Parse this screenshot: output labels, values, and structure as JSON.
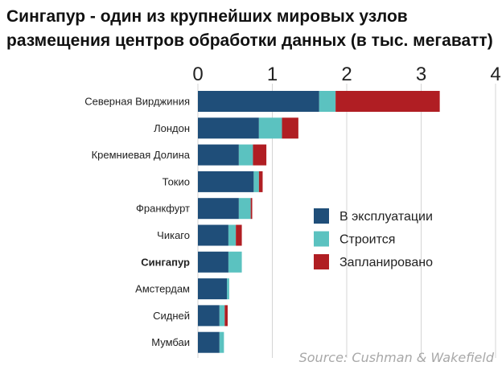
{
  "title_lines": [
    "Сингапур - один из крупнейших мировых узлов",
    "размещения центров обработки данных (в тыс. мегаватт)"
  ],
  "source": "Source: Cushman & Wakefield",
  "colors": {
    "operating": "#1f4e79",
    "construction": "#5bc2c0",
    "planned": "#b01e23",
    "grid": "#d4d4d4",
    "text": "#222222"
  },
  "chart_data": {
    "type": "bar",
    "orientation": "horizontal",
    "stacked": true,
    "xlim": [
      0,
      4
    ],
    "x_ticks": [
      "0",
      "1",
      "2",
      "3",
      "4"
    ],
    "highlight_category": "Сингапур",
    "categories": [
      "Северная Вирджиния",
      "Лондон",
      "Кремниевая Долина",
      "Токио",
      "Франкфурт",
      "Чикаго",
      "Сингапур",
      "Амстердам",
      "Сидней",
      "Мумбаи"
    ],
    "series": [
      {
        "name": "В эксплуатации",
        "values": [
          1.63,
          0.82,
          0.55,
          0.75,
          0.55,
          0.41,
          0.41,
          0.39,
          0.29,
          0.29
        ]
      },
      {
        "name": "Строится",
        "values": [
          0.22,
          0.31,
          0.19,
          0.07,
          0.16,
          0.1,
          0.18,
          0.03,
          0.07,
          0.06
        ]
      },
      {
        "name": "Запланировано",
        "values": [
          1.4,
          0.22,
          0.18,
          0.05,
          0.02,
          0.08,
          0.0,
          0.0,
          0.04,
          0.0
        ]
      }
    ],
    "legend_position": "right"
  }
}
